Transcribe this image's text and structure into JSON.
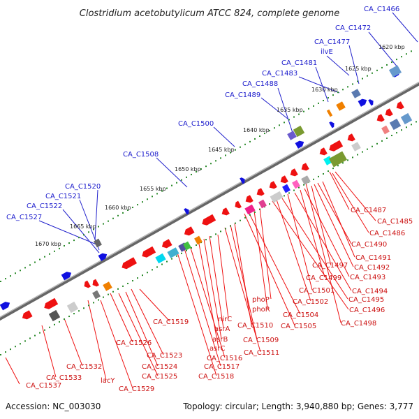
{
  "title": "Clostridium acetobutylicum ATCC 824, complete genome",
  "footer": {
    "accession": "Accession: NC_003030",
    "stats": "Topology: circular; Length: 3,940,880 bp; Genes: 3,777"
  },
  "colors": {
    "forward_label": "#1a1acc",
    "reverse_label": "#cc1111",
    "forward_gene": "#1010e0",
    "reverse_gene": "#ee1111",
    "backbone": "#888888",
    "tick_dots": "#2a8a2a"
  },
  "ticks": [
    {
      "label": "1620 kbp"
    },
    {
      "label": "1625 kbp"
    },
    {
      "label": "1630 kbp"
    },
    {
      "label": "1635 kbp"
    },
    {
      "label": "1640 kbp"
    },
    {
      "label": "1645 kbp"
    },
    {
      "label": "1650 kbp"
    },
    {
      "label": "1655 kbp"
    },
    {
      "label": "1660 kbp"
    },
    {
      "label": "1665 kbp"
    },
    {
      "label": "1670 kbp"
    }
  ],
  "forward_labels": [
    "CA_C1466",
    "CA_C1472",
    "CA_C1477",
    "ilvE",
    "CA_C1481",
    "CA_C1483",
    "CA_C1488",
    "CA_C1489",
    "CA_C1500",
    "CA_C1508",
    "CA_C1520",
    "CA_C1521",
    "CA_C1522",
    "CA_C1527"
  ],
  "reverse_labels": [
    "CA_C1487",
    "CA_C1485",
    "CA_C1486",
    "CA_C1490",
    "CA_C1491",
    "CA_C1492",
    "CA_C1497",
    "CA_C1493",
    "CA_C1499",
    "CA_C1494",
    "CA_C1501",
    "CA_C1495",
    "CA_C1502",
    "CA_C1496",
    "phoP",
    "phoR",
    "CA_C1504",
    "CA_C1498",
    "CA_C1505",
    "nirC",
    "CA_C1510",
    "CA_C1519",
    "asrA",
    "CA_C1509",
    "asrB",
    "asrC",
    "CA_C1511",
    "CA_C1526",
    "CA_C1516",
    "CA_C1523",
    "CA_C1517",
    "CA_C1524",
    "CA_C1532",
    "CA_C1525",
    "CA_C1518",
    "CA_C1533",
    "lacY",
    "CA_C1529",
    "CA_C1537"
  ]
}
